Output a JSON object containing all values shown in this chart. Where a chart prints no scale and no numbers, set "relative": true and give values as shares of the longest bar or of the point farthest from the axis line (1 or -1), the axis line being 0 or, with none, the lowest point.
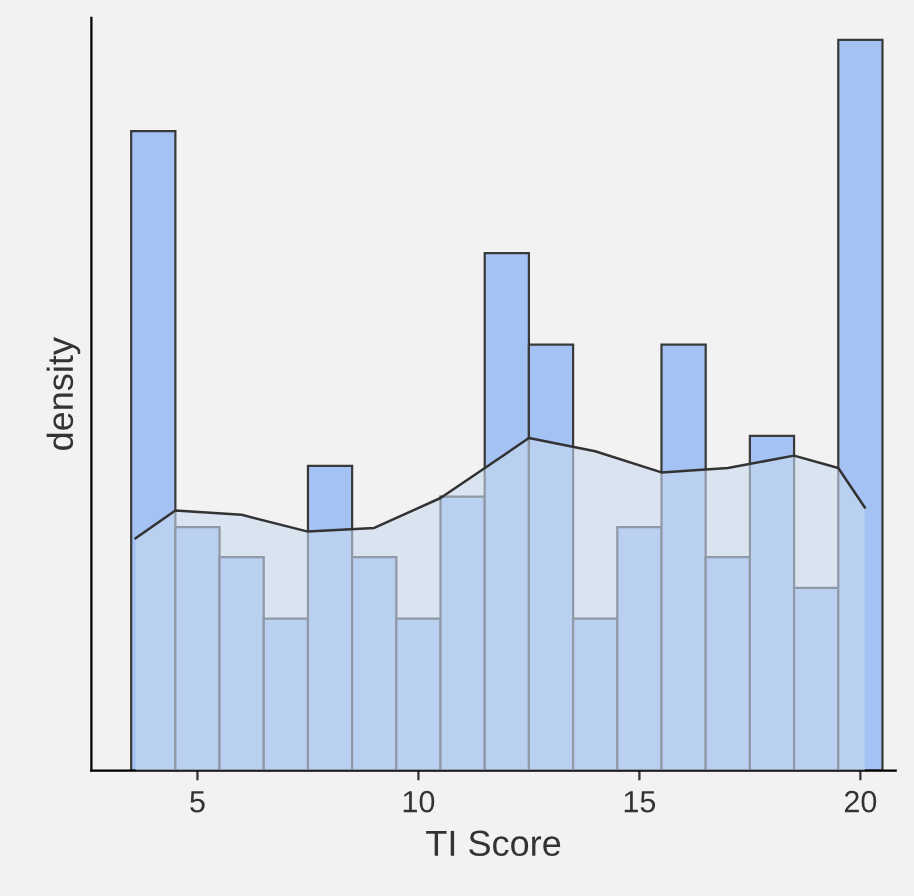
{
  "chart_data": {
    "type": "histogram",
    "xlabel": "TI Score",
    "ylabel": "density",
    "relative": true,
    "color": "#a4c2f4",
    "bins": [
      3.5,
      4.5,
      5.5,
      6.5,
      7.5,
      8.5,
      9.5,
      10.5,
      11.5,
      12.5,
      13.5,
      14.5,
      15.5,
      16.5,
      17.5,
      18.5,
      19.5,
      20.5
    ],
    "values": [
      0.875,
      0.333,
      0.292,
      0.208,
      0.417,
      0.292,
      0.208,
      0.375,
      0.708,
      0.583,
      0.208,
      0.333,
      0.583,
      0.292,
      0.458,
      0.25,
      1
    ],
    "series": [
      {
        "type": "area",
        "color": "#c9d8ee",
        "x": [
          3.6,
          4.5,
          6,
          7.5,
          9,
          10.5,
          12.5,
          14,
          15.5,
          17,
          18.5,
          19.5,
          20.1
        ],
        "values": [
          0.318,
          0.356,
          0.35,
          0.327,
          0.332,
          0.373,
          0.455,
          0.437,
          0.408,
          0.414,
          0.431,
          0.414,
          0.36
        ]
      }
    ],
    "xlim": [
      2.6,
      20.8
    ],
    "xticks": [
      5,
      10,
      15,
      20
    ],
    "tick_labels": "x",
    "grid": false
  }
}
